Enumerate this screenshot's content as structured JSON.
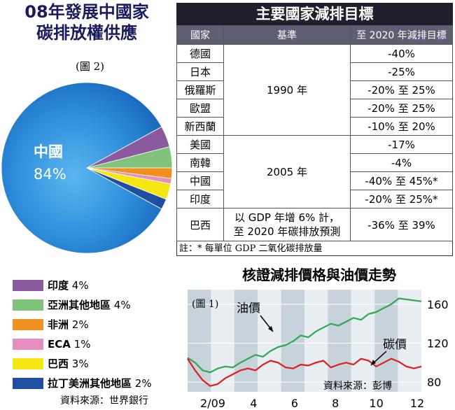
{
  "pie": {
    "title_line1": "08年發展中國家",
    "title_line2": "碳排放權供應",
    "figure_label": "(圖 2)",
    "china_label": "中國",
    "china_pct": "84%"
  },
  "legend": [
    {
      "name": "印度",
      "pct": "4%",
      "color": "#8b5a9e",
      "bold": true
    },
    {
      "name": "亞洲其他地區",
      "pct": "4%",
      "color": "#7fc47a",
      "bold": true
    },
    {
      "name": "非洲",
      "pct": "2%",
      "color": "#f0901e",
      "bold": true
    },
    {
      "name": "ECA",
      "pct": "1%",
      "color": "#e58fc0",
      "bold": true
    },
    {
      "name": "巴西",
      "pct": "3%",
      "color": "#f5e614",
      "bold": true
    },
    {
      "name": "拉丁美洲其他地區",
      "pct": "2%",
      "color": "#1f4ea3",
      "bold": true
    }
  ],
  "pie_source": "資料來源：世界銀行",
  "table": {
    "title": "主要國家減排目標",
    "headers": [
      "國家",
      "基準",
      "至 2020 年減排目標"
    ],
    "groups": [
      {
        "baseline": "1990 年",
        "rows": [
          {
            "country": "德國",
            "target": "-40%"
          },
          {
            "country": "日本",
            "target": "-25%"
          },
          {
            "country": "俄羅斯",
            "target": "-20% 至 25%"
          },
          {
            "country": "歐盟",
            "target": "-20% 至 25%"
          },
          {
            "country": "新西蘭",
            "target": "-10% 至 20%"
          }
        ]
      },
      {
        "baseline": "2005 年",
        "rows": [
          {
            "country": "美國",
            "target": "-17%"
          },
          {
            "country": "南韓",
            "target": "-4%"
          },
          {
            "country": "中國",
            "target": "-40% 至 45%*"
          },
          {
            "country": "印度",
            "target": "-20% 至 25%*"
          }
        ]
      },
      {
        "baseline_line1": "以 GDP 年增 6% 計，",
        "baseline_line2": "至 2020 年碳排放預測",
        "rows": [
          {
            "country": "巴西",
            "target": "-36% 至 39%"
          }
        ]
      }
    ],
    "note": "註：* 每單位 GDP 二氧化碳排放量"
  },
  "line_chart": {
    "title": "核證減排價格與油價走勢",
    "figure_label": "(圖 1)",
    "oil_label": "油價",
    "carbon_label": "碳價",
    "source": "資料來源：彭博"
  },
  "chart_data": [
    {
      "type": "pie",
      "title": "08年發展中國家碳排放權供應",
      "categories": [
        "中國",
        "印度",
        "亞洲其他地區",
        "非洲",
        "ECA",
        "巴西",
        "拉丁美洲其他地區"
      ],
      "values": [
        84,
        4,
        4,
        2,
        1,
        3,
        2
      ],
      "colors": [
        "#2e88d6",
        "#8b5a9e",
        "#7fc47a",
        "#f0901e",
        "#e58fc0",
        "#f5e614",
        "#1f4ea3"
      ]
    },
    {
      "type": "line",
      "title": "核證減排價格與油價走勢",
      "x_ticks": [
        "2/09",
        "4",
        "6",
        "8",
        "10",
        "12"
      ],
      "y_ticks": [
        80,
        120,
        160
      ],
      "ylim": [
        70,
        175
      ],
      "series": [
        {
          "name": "油價",
          "color": "#2fa84f",
          "values": [
            105,
            100,
            92,
            90,
            94,
            96,
            95,
            100,
            104,
            108,
            106,
            112,
            116,
            118,
            122,
            128,
            126,
            132,
            136,
            140,
            138,
            142,
            146,
            144,
            150,
            152,
            156,
            160,
            166,
            165,
            164,
            163
          ]
        },
        {
          "name": "碳價",
          "color": "#e01e1e",
          "values": [
            104,
            92,
            82,
            76,
            78,
            84,
            88,
            92,
            94,
            92,
            98,
            102,
            100,
            95,
            94,
            98,
            97,
            100,
            102,
            95,
            98,
            100,
            98,
            104,
            102,
            96,
            100,
            104,
            101,
            96,
            94,
            96
          ]
        }
      ]
    }
  ]
}
